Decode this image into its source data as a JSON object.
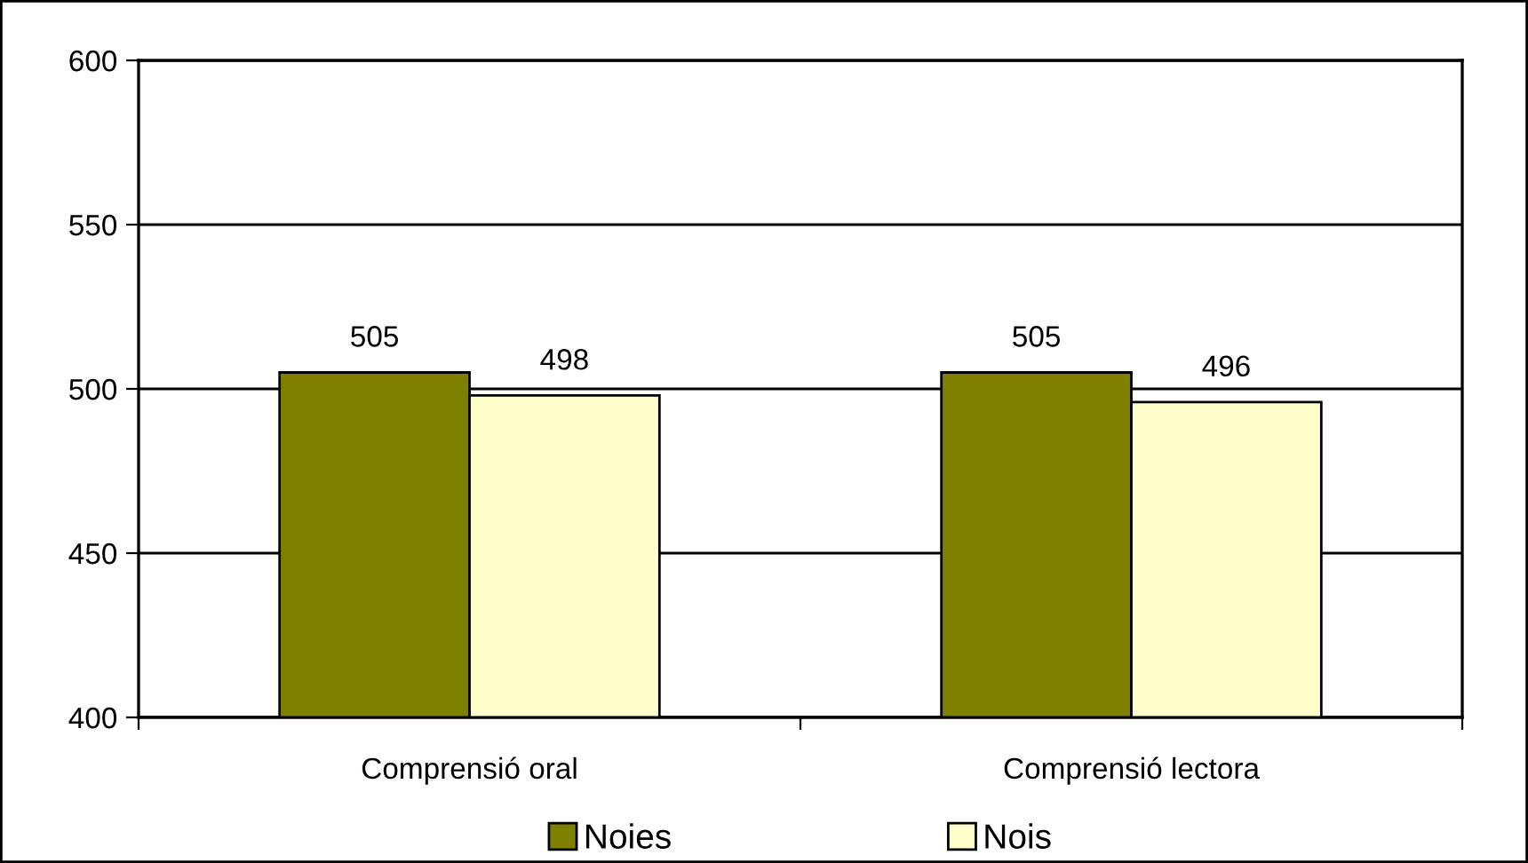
{
  "chart_data": {
    "type": "bar",
    "categories": [
      "Comprensió oral",
      "Comprensió lectora"
    ],
    "series": [
      {
        "name": "Noies",
        "color": "#808000",
        "values": [
          505,
          505
        ]
      },
      {
        "name": "Nois",
        "color": "#ffffcc",
        "values": [
          498,
          496
        ]
      }
    ],
    "ylim": [
      400,
      600
    ],
    "yticks": [
      400,
      450,
      500,
      550,
      600
    ],
    "grid": "y",
    "legend": "bottom",
    "data_labels": true
  }
}
